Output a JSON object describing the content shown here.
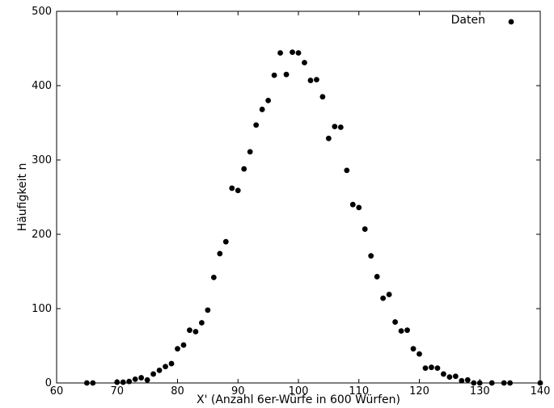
{
  "chart_data": {
    "type": "scatter",
    "xlabel": "X' (Anzahl 6er-Würfe in 600 Würfen)",
    "ylabel": "Häufigkeit n",
    "xlim": [
      60,
      140
    ],
    "ylim": [
      0,
      500
    ],
    "xticks": [
      60,
      70,
      80,
      90,
      100,
      110,
      120,
      130,
      140
    ],
    "yticks": [
      0,
      100,
      200,
      300,
      400,
      500
    ],
    "grid": false,
    "legend": {
      "position": "top-right",
      "entries": [
        "Daten"
      ]
    },
    "series": [
      {
        "name": "Daten",
        "color": "#000000",
        "marker": "circle",
        "x": [
          65,
          66,
          70,
          71,
          72,
          73,
          74,
          75,
          76,
          77,
          78,
          79,
          80,
          81,
          82,
          83,
          84,
          85,
          86,
          87,
          88,
          89,
          90,
          91,
          92,
          93,
          94,
          95,
          96,
          97,
          98,
          99,
          100,
          101,
          102,
          103,
          104,
          105,
          106,
          107,
          108,
          109,
          110,
          111,
          112,
          113,
          114,
          115,
          116,
          117,
          118,
          119,
          120,
          121,
          122,
          123,
          124,
          125,
          126,
          127,
          128,
          129,
          130,
          132,
          134,
          135,
          140
        ],
        "y": [
          0,
          0,
          1,
          1,
          2,
          5,
          7,
          4,
          12,
          17,
          22,
          26,
          46,
          51,
          71,
          69,
          81,
          98,
          142,
          174,
          190,
          262,
          259,
          288,
          311,
          347,
          368,
          380,
          414,
          444,
          415,
          445,
          444,
          431,
          407,
          408,
          385,
          329,
          345,
          344,
          286,
          240,
          236,
          207,
          171,
          143,
          114,
          119,
          82,
          70,
          71,
          46,
          39,
          20,
          21,
          20,
          12,
          8,
          9,
          3,
          4,
          0,
          0,
          0,
          0,
          0,
          0
        ]
      }
    ]
  }
}
